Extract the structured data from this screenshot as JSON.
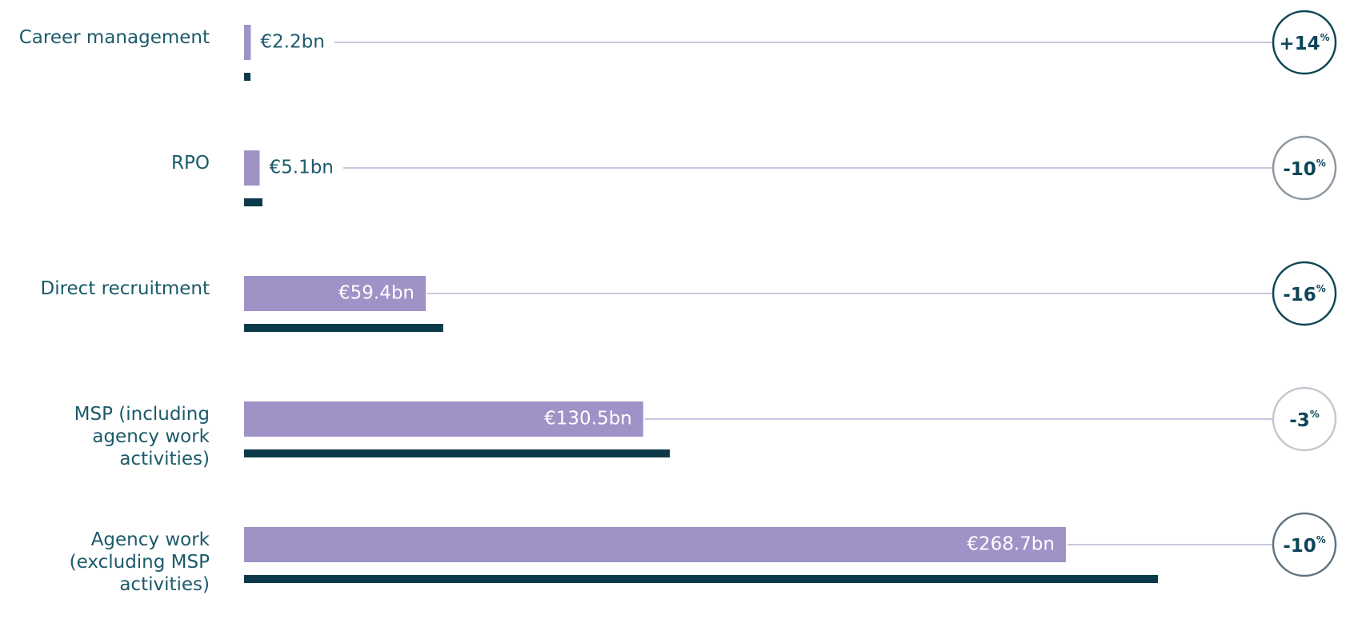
{
  "chart_data": {
    "type": "bar",
    "categories": [
      "Career management",
      "RPO",
      "Direct recruitment",
      "MSP (including\nagency work\nactivities)",
      "Agency work\n(excluding MSP\nactivities)"
    ],
    "series": [
      {
        "color": "#9e92c6",
        "values": [
          2.2,
          5.1,
          59.4,
          130.5,
          268.7
        ],
        "value_labels": [
          "€2.2bn",
          "€5.1bn",
          "€59.4bn",
          "€130.5bn",
          "€268.7bn"
        ]
      },
      {
        "color": "#0d3a4a",
        "values": [
          2.1,
          6.0,
          65.1,
          139.2,
          298.8
        ]
      }
    ],
    "xlim": [
      0,
      300
    ],
    "changes": [
      "+14",
      "-10",
      "-16",
      "-3",
      "-10"
    ],
    "change_unit": "%",
    "change_colors": [
      "#0d4657",
      "#8a97a2",
      "#0d4657",
      "#c3c8cf",
      "#5f7480"
    ]
  }
}
